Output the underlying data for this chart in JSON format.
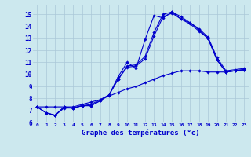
{
  "xlabel": "Graphe des températures (°c)",
  "background_color": "#cce8ee",
  "line_color": "#0000cc",
  "grid_color": "#aac8d8",
  "xlim": [
    -0.5,
    23.5
  ],
  "ylim": [
    6.0,
    15.8
  ],
  "yticks": [
    6,
    7,
    8,
    9,
    10,
    11,
    12,
    13,
    14,
    15
  ],
  "xticks": [
    0,
    1,
    2,
    3,
    4,
    5,
    6,
    7,
    8,
    9,
    10,
    11,
    12,
    13,
    14,
    15,
    16,
    17,
    18,
    19,
    20,
    21,
    22,
    23
  ],
  "series": [
    [
      7.3,
      6.8,
      6.6,
      7.3,
      7.2,
      7.4,
      7.4,
      7.8,
      8.3,
      9.8,
      11.0,
      10.5,
      12.9,
      14.9,
      14.7,
      15.2,
      14.6,
      14.3,
      13.7,
      13.0,
      11.2,
      10.2,
      10.3,
      10.4
    ],
    [
      7.3,
      6.8,
      6.6,
      7.3,
      7.2,
      7.4,
      7.5,
      7.9,
      8.3,
      9.6,
      10.7,
      10.8,
      11.5,
      13.5,
      15.0,
      15.2,
      14.8,
      14.3,
      13.8,
      13.1,
      11.4,
      10.3,
      10.4,
      10.5
    ],
    [
      7.3,
      6.8,
      6.6,
      7.2,
      7.2,
      7.4,
      7.4,
      7.8,
      8.3,
      9.6,
      10.6,
      10.7,
      11.3,
      13.2,
      14.8,
      15.1,
      14.6,
      14.2,
      13.6,
      13.0,
      11.2,
      10.2,
      10.3,
      10.4
    ],
    [
      7.3,
      7.3,
      7.3,
      7.3,
      7.3,
      7.5,
      7.7,
      7.9,
      8.2,
      8.5,
      8.8,
      9.0,
      9.3,
      9.6,
      9.9,
      10.1,
      10.3,
      10.3,
      10.3,
      10.2,
      10.2,
      10.2,
      10.3,
      10.4
    ]
  ]
}
